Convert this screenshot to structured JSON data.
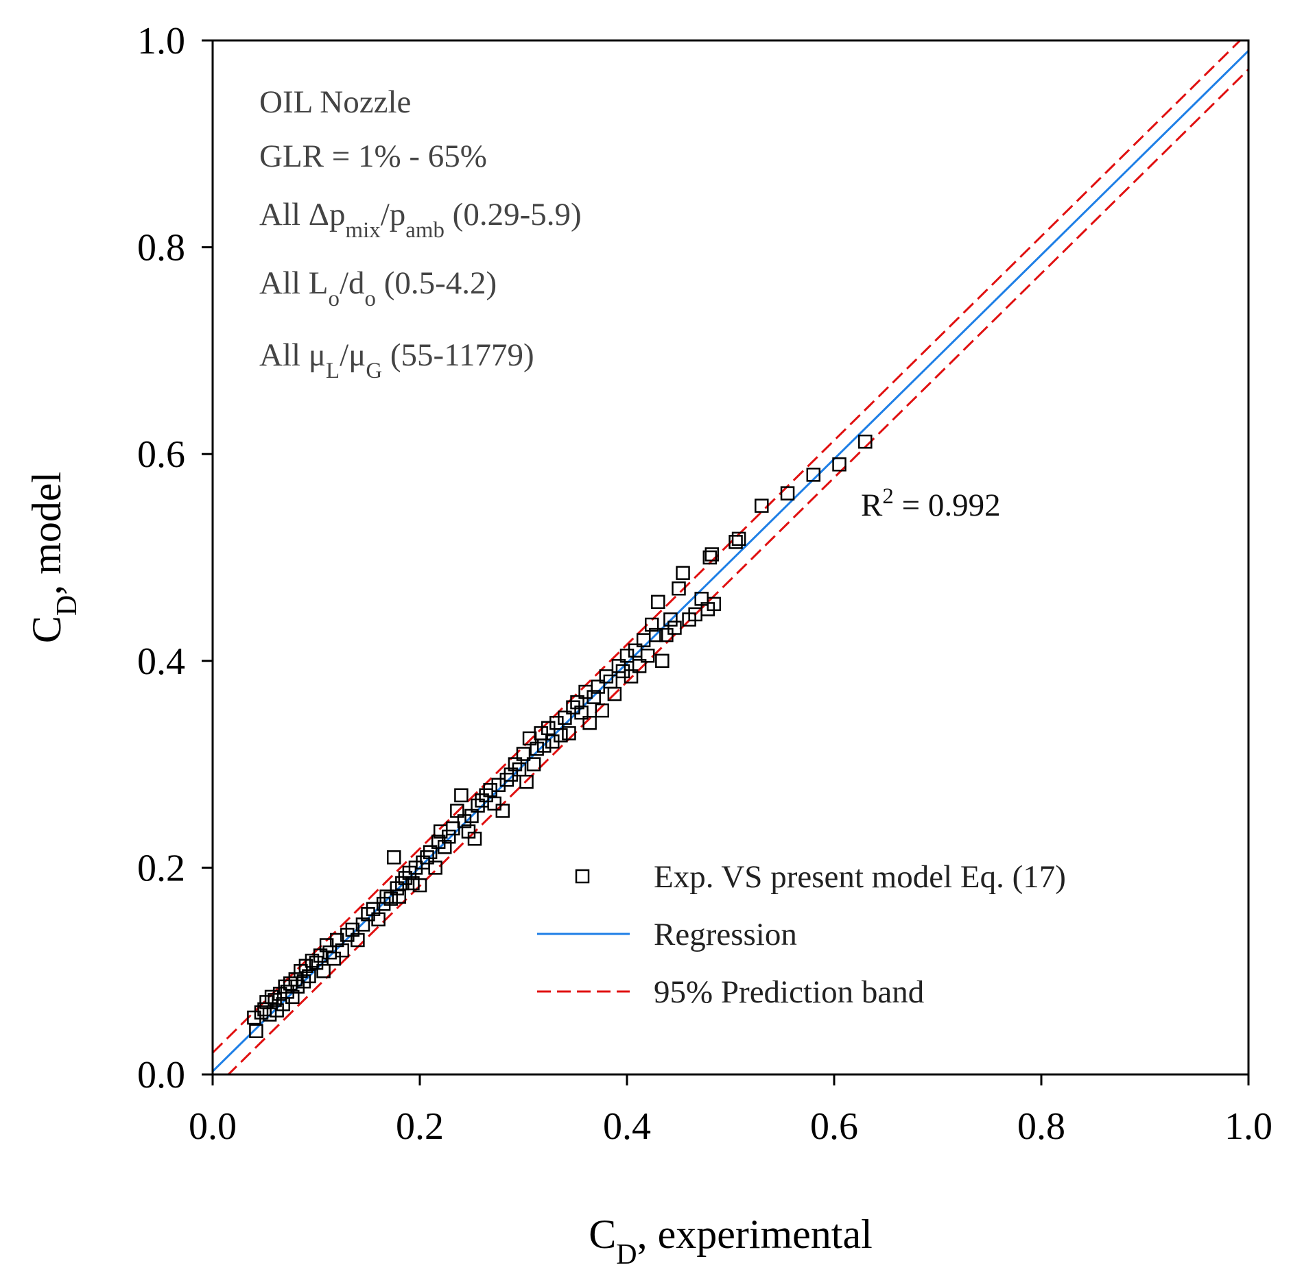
{
  "chart_data": {
    "type": "scatter",
    "xlabel": {
      "main": "C",
      "sub": "D",
      "rest": ", experimental"
    },
    "ylabel": {
      "main": "C",
      "sub": "D",
      "rest": ", model"
    },
    "xlim": [
      0,
      1
    ],
    "ylim": [
      0,
      1
    ],
    "xticks": [
      "0.0",
      "0.2",
      "0.4",
      "0.6",
      "0.8",
      "1.0"
    ],
    "yticks": [
      "0.0",
      "0.2",
      "0.4",
      "0.6",
      "0.8",
      "1.0"
    ],
    "grid": false,
    "annotations": [
      {
        "text": "OIL Nozzle"
      },
      {
        "text": "GLR = 1% - 65%"
      },
      {
        "parts": [
          {
            "t": "All Δp"
          },
          {
            "t": "mix",
            "sub": true
          },
          {
            "t": "/p"
          },
          {
            "t": "amb",
            "sub": true
          },
          {
            "t": " (0.29-5.9)"
          }
        ]
      },
      {
        "parts": [
          {
            "t": "All L"
          },
          {
            "t": "o",
            "sub": true
          },
          {
            "t": "/d"
          },
          {
            "t": "o",
            "sub": true
          },
          {
            "t": " (0.5-4.2)"
          }
        ]
      },
      {
        "parts": [
          {
            "t": "All μ"
          },
          {
            "t": "L",
            "sub": true
          },
          {
            "t": "/μ"
          },
          {
            "t": "G",
            "sub": true
          },
          {
            "t": "  (55-11779)"
          }
        ]
      }
    ],
    "r2": {
      "prefix": "R",
      "sup": "2",
      "suffix": " = 0.992"
    },
    "legend_position": "bottom-right",
    "series": [
      {
        "name": "Exp. VS present model Eq. (17)",
        "kind": "scatter",
        "marker": "square",
        "color": "#000000"
      },
      {
        "name": "Regression",
        "kind": "line",
        "color": "#1e7fe6",
        "intercept": 0.003,
        "slope": 0.987
      },
      {
        "name": "95% Prediction band",
        "kind": "dashed",
        "color": "#e01010",
        "halfwidth": 0.018
      }
    ],
    "points": [
      [
        0.04,
        0.055
      ],
      [
        0.042,
        0.042
      ],
      [
        0.047,
        0.06
      ],
      [
        0.05,
        0.063
      ],
      [
        0.052,
        0.07
      ],
      [
        0.055,
        0.058
      ],
      [
        0.057,
        0.075
      ],
      [
        0.06,
        0.072
      ],
      [
        0.062,
        0.062
      ],
      [
        0.065,
        0.078
      ],
      [
        0.068,
        0.068
      ],
      [
        0.07,
        0.085
      ],
      [
        0.072,
        0.08
      ],
      [
        0.075,
        0.088
      ],
      [
        0.077,
        0.075
      ],
      [
        0.08,
        0.092
      ],
      [
        0.082,
        0.085
      ],
      [
        0.085,
        0.1
      ],
      [
        0.088,
        0.09
      ],
      [
        0.09,
        0.105
      ],
      [
        0.093,
        0.095
      ],
      [
        0.096,
        0.11
      ],
      [
        0.1,
        0.108
      ],
      [
        0.104,
        0.115
      ],
      [
        0.107,
        0.1
      ],
      [
        0.11,
        0.125
      ],
      [
        0.113,
        0.118
      ],
      [
        0.117,
        0.112
      ],
      [
        0.12,
        0.13
      ],
      [
        0.125,
        0.12
      ],
      [
        0.13,
        0.135
      ],
      [
        0.135,
        0.14
      ],
      [
        0.14,
        0.13
      ],
      [
        0.145,
        0.145
      ],
      [
        0.15,
        0.155
      ],
      [
        0.155,
        0.16
      ],
      [
        0.16,
        0.15
      ],
      [
        0.165,
        0.165
      ],
      [
        0.168,
        0.172
      ],
      [
        0.172,
        0.17
      ],
      [
        0.175,
        0.21
      ],
      [
        0.178,
        0.18
      ],
      [
        0.18,
        0.172
      ],
      [
        0.183,
        0.185
      ],
      [
        0.186,
        0.19
      ],
      [
        0.19,
        0.195
      ],
      [
        0.193,
        0.185
      ],
      [
        0.196,
        0.2
      ],
      [
        0.2,
        0.183
      ],
      [
        0.203,
        0.205
      ],
      [
        0.207,
        0.21
      ],
      [
        0.21,
        0.215
      ],
      [
        0.215,
        0.2
      ],
      [
        0.218,
        0.225
      ],
      [
        0.22,
        0.235
      ],
      [
        0.224,
        0.22
      ],
      [
        0.228,
        0.23
      ],
      [
        0.232,
        0.238
      ],
      [
        0.236,
        0.255
      ],
      [
        0.24,
        0.27
      ],
      [
        0.243,
        0.245
      ],
      [
        0.247,
        0.235
      ],
      [
        0.25,
        0.25
      ],
      [
        0.253,
        0.228
      ],
      [
        0.256,
        0.26
      ],
      [
        0.26,
        0.265
      ],
      [
        0.264,
        0.27
      ],
      [
        0.268,
        0.275
      ],
      [
        0.272,
        0.262
      ],
      [
        0.276,
        0.28
      ],
      [
        0.28,
        0.255
      ],
      [
        0.284,
        0.285
      ],
      [
        0.288,
        0.29
      ],
      [
        0.292,
        0.3
      ],
      [
        0.296,
        0.295
      ],
      [
        0.3,
        0.31
      ],
      [
        0.303,
        0.283
      ],
      [
        0.306,
        0.325
      ],
      [
        0.31,
        0.3
      ],
      [
        0.313,
        0.315
      ],
      [
        0.317,
        0.33
      ],
      [
        0.32,
        0.318
      ],
      [
        0.324,
        0.335
      ],
      [
        0.328,
        0.322
      ],
      [
        0.332,
        0.34
      ],
      [
        0.336,
        0.328
      ],
      [
        0.34,
        0.345
      ],
      [
        0.344,
        0.33
      ],
      [
        0.348,
        0.355
      ],
      [
        0.352,
        0.36
      ],
      [
        0.356,
        0.35
      ],
      [
        0.36,
        0.37
      ],
      [
        0.364,
        0.34
      ],
      [
        0.368,
        0.365
      ],
      [
        0.372,
        0.375
      ],
      [
        0.376,
        0.352
      ],
      [
        0.38,
        0.385
      ],
      [
        0.384,
        0.38
      ],
      [
        0.388,
        0.368
      ],
      [
        0.392,
        0.395
      ],
      [
        0.396,
        0.39
      ],
      [
        0.4,
        0.405
      ],
      [
        0.404,
        0.385
      ],
      [
        0.408,
        0.41
      ],
      [
        0.412,
        0.395
      ],
      [
        0.416,
        0.42
      ],
      [
        0.42,
        0.405
      ],
      [
        0.424,
        0.435
      ],
      [
        0.428,
        0.425
      ],
      [
        0.43,
        0.457
      ],
      [
        0.434,
        0.4
      ],
      [
        0.438,
        0.425
      ],
      [
        0.442,
        0.44
      ],
      [
        0.446,
        0.432
      ],
      [
        0.45,
        0.47
      ],
      [
        0.454,
        0.485
      ],
      [
        0.46,
        0.44
      ],
      [
        0.466,
        0.445
      ],
      [
        0.472,
        0.46
      ],
      [
        0.478,
        0.45
      ],
      [
        0.48,
        0.5
      ],
      [
        0.482,
        0.503
      ],
      [
        0.484,
        0.455
      ],
      [
        0.505,
        0.515
      ],
      [
        0.508,
        0.518
      ],
      [
        0.53,
        0.55
      ],
      [
        0.555,
        0.562
      ],
      [
        0.58,
        0.58
      ],
      [
        0.605,
        0.59
      ],
      [
        0.63,
        0.612
      ]
    ]
  }
}
